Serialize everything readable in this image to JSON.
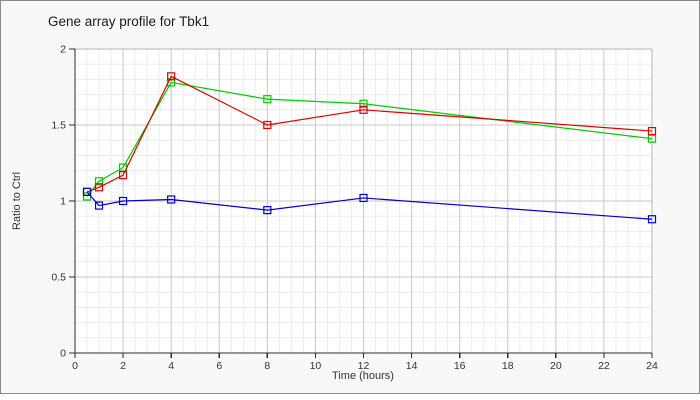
{
  "window": {
    "background": "#f8f8f8",
    "border_color": "#8a8a8a"
  },
  "chart_data": {
    "type": "line",
    "title": "Gene array profile for Tbk1",
    "xlabel": "Time (hours)",
    "ylabel": "Ratio to Ctrl",
    "xlim": [
      0,
      24
    ],
    "ylim": [
      0,
      2
    ],
    "xticks": [
      0,
      2,
      4,
      6,
      8,
      10,
      12,
      14,
      16,
      18,
      20,
      22,
      24
    ],
    "xtick_labels": [
      "0",
      "2",
      "4",
      "6",
      "8",
      "10",
      "12",
      "14",
      "16",
      "18",
      "20",
      "22",
      "24"
    ],
    "yticks": [
      0,
      0.5,
      1,
      1.5,
      2
    ],
    "ytick_labels": [
      "0",
      "0.5",
      "1",
      "1.5",
      "2"
    ],
    "minor_x_step": 0.5,
    "minor_y_step": 0.1,
    "grid": true,
    "legend": "none",
    "marker": "open-square",
    "x": [
      0.5,
      1,
      2,
      4,
      8,
      12,
      24
    ],
    "series": [
      {
        "name": "series-green",
        "color": "#00cc00",
        "values": [
          1.03,
          1.13,
          1.22,
          1.78,
          1.67,
          1.64,
          1.41
        ]
      },
      {
        "name": "series-red",
        "color": "#dd0000",
        "values": [
          1.06,
          1.09,
          1.17,
          1.82,
          1.5,
          1.6,
          1.46
        ]
      },
      {
        "name": "series-blue",
        "color": "#0000cc",
        "values": [
          1.06,
          0.97,
          1.0,
          1.01,
          0.94,
          1.02,
          0.88
        ]
      }
    ],
    "style": {
      "plot_background": "#ffffff",
      "minor_grid_color": "#ececec",
      "major_grid_color": "#c9c9c9",
      "frame_color": "#b4b4b4",
      "axis_color": "#2b2b2b",
      "tick_label_color": "#333333"
    }
  }
}
